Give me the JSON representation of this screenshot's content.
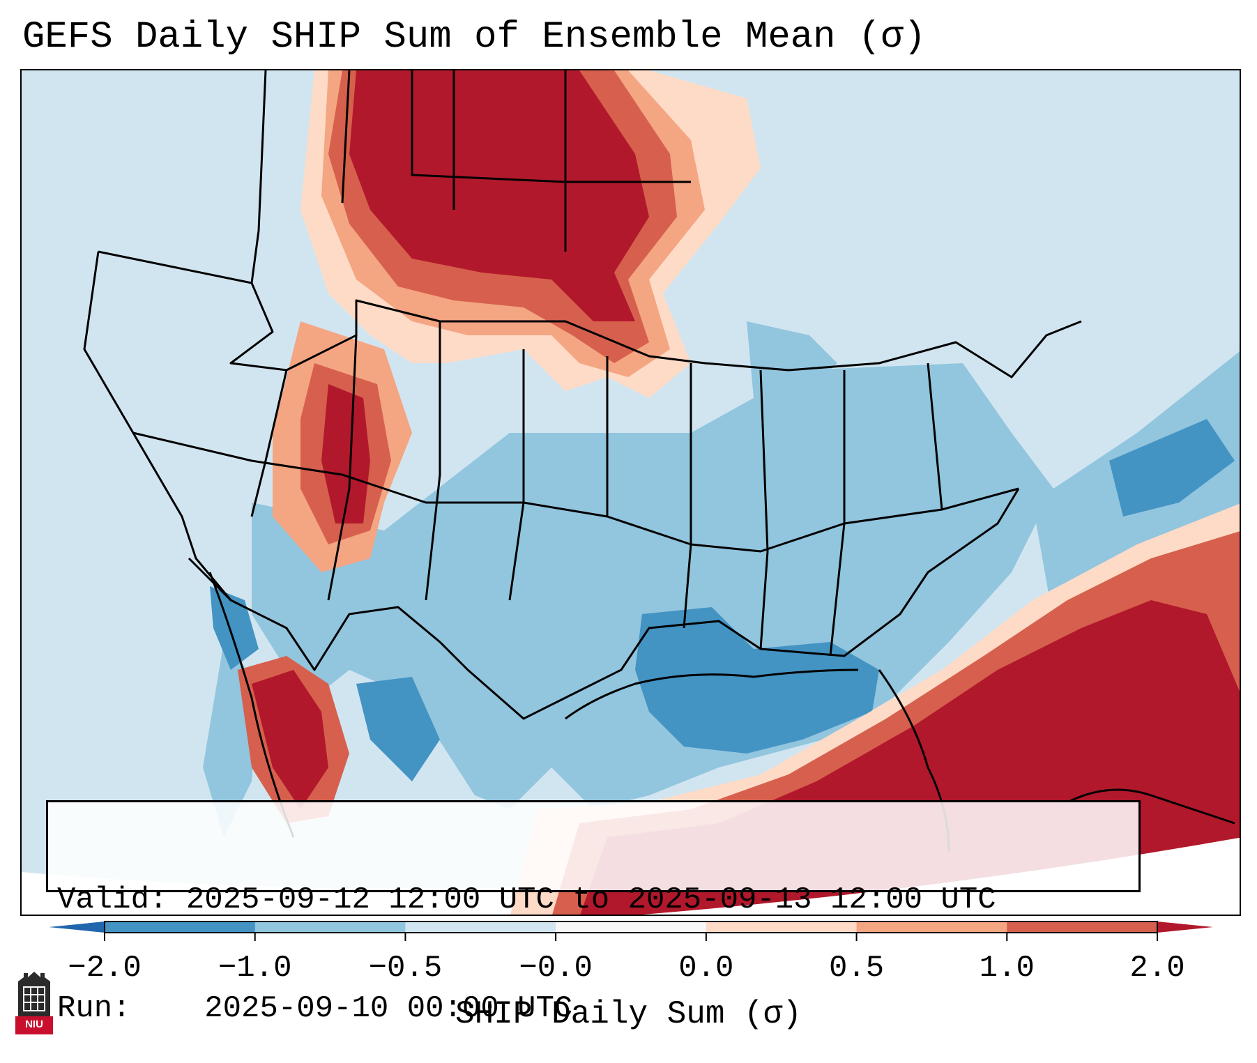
{
  "title": "GEFS Daily SHIP Sum of Ensemble Mean (σ)",
  "info": {
    "valid_label": "Valid:",
    "valid_value": "2025-09-12 12:00 UTC to 2025-09-13 12:00 UTC",
    "run_label": "Run:",
    "run_value": "2025-09-10 00:00 UTC"
  },
  "colorbar": {
    "label": "SHIP Daily Sum (σ)",
    "tick_labels": [
      "−2.0",
      "−1.0",
      "−0.5",
      "−0.0",
      "0.0",
      "0.5",
      "1.0",
      "2.0"
    ],
    "bin_colors": [
      "#4393c3",
      "#92c5de",
      "#d1e5f0",
      "#f7f7f7",
      "#fddbc7",
      "#f4a582",
      "#d6604d"
    ],
    "under_color": "#2166ac",
    "over_color": "#b2182b"
  },
  "map": {
    "background_color": "#d1e5f0",
    "regions": [
      {
        "name": "northern-plains-max",
        "level": "over"
      },
      {
        "name": "northern-plains-halo",
        "level": "1.0 to 2.0"
      },
      {
        "name": "rockies-max",
        "level": "over"
      },
      {
        "name": "baja-max",
        "level": "over"
      },
      {
        "name": "atlantic-gulf-max",
        "level": "over"
      },
      {
        "name": "southeast-us",
        "level": "-1.0 to -0.5"
      },
      {
        "name": "gulf-coast-min",
        "level": "-2.0 to -1.0"
      },
      {
        "name": "western-atlantic-min",
        "level": "-2.0 to -1.0"
      }
    ]
  },
  "logo": {
    "text": "NIU"
  }
}
